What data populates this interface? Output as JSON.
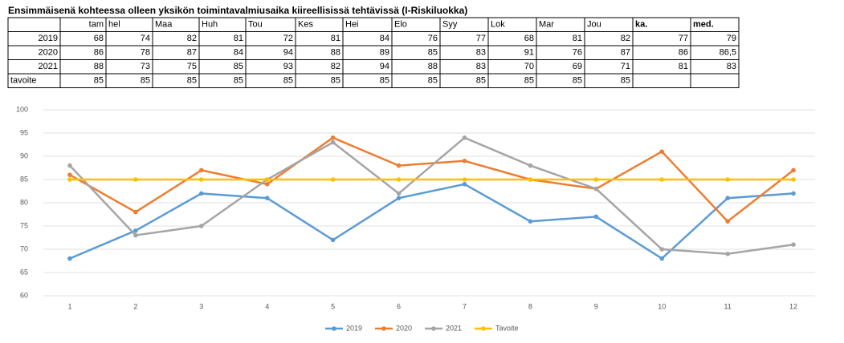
{
  "title": "Ensimmäisenä kohteessa olleen yksikön toimintavalmiusaika kiireellisissä tehtävissä (I-Riskiluokka)",
  "table": {
    "header": [
      "tam",
      "hel",
      "Maa",
      "Huh",
      "Tou",
      "Kes",
      "Hei",
      "Elo",
      "Syy",
      "Lok",
      "Mar",
      "Jou",
      "ka.",
      "med."
    ],
    "rows": [
      {
        "label": "2019",
        "cells": [
          68,
          74,
          82,
          81,
          72,
          81,
          84,
          76,
          77,
          68,
          81,
          82,
          77,
          79
        ]
      },
      {
        "label": "2020",
        "cells": [
          86,
          78,
          87,
          84,
          94,
          88,
          89,
          85,
          83,
          91,
          76,
          87,
          86,
          "86,5"
        ]
      },
      {
        "label": "2021",
        "cells": [
          88,
          73,
          75,
          85,
          93,
          82,
          94,
          88,
          83,
          70,
          69,
          71,
          81,
          83
        ]
      },
      {
        "label": "tavoite",
        "cells": [
          85,
          85,
          85,
          85,
          85,
          85,
          85,
          85,
          85,
          85,
          85,
          85
        ]
      }
    ]
  },
  "chart_data": {
    "type": "line",
    "x": [
      1,
      2,
      3,
      4,
      5,
      6,
      7,
      8,
      9,
      10,
      11,
      12
    ],
    "xlim": [
      0.5,
      12.5
    ],
    "xticks": [
      1,
      2,
      3,
      4,
      5,
      6,
      7,
      8,
      9,
      10,
      11,
      12
    ],
    "ylim": [
      60,
      100
    ],
    "yticks": [
      60,
      65,
      70,
      75,
      80,
      85,
      90,
      95,
      100
    ],
    "grid": true,
    "legend": "bottom",
    "series": [
      {
        "name": "2019",
        "color": "#5b9bd5",
        "values": [
          68,
          74,
          82,
          81,
          72,
          81,
          84,
          76,
          77,
          68,
          81,
          82
        ]
      },
      {
        "name": "2020",
        "color": "#ed7d31",
        "values": [
          86,
          78,
          87,
          84,
          94,
          88,
          89,
          85,
          83,
          91,
          76,
          87
        ]
      },
      {
        "name": "2021",
        "color": "#a5a5a5",
        "values": [
          88,
          73,
          75,
          85,
          93,
          82,
          94,
          88,
          83,
          70,
          69,
          71
        ]
      },
      {
        "name": "Tavoite",
        "color": "#ffc000",
        "values": [
          85,
          85,
          85,
          85,
          85,
          85,
          85,
          85,
          85,
          85,
          85,
          85
        ]
      }
    ]
  }
}
